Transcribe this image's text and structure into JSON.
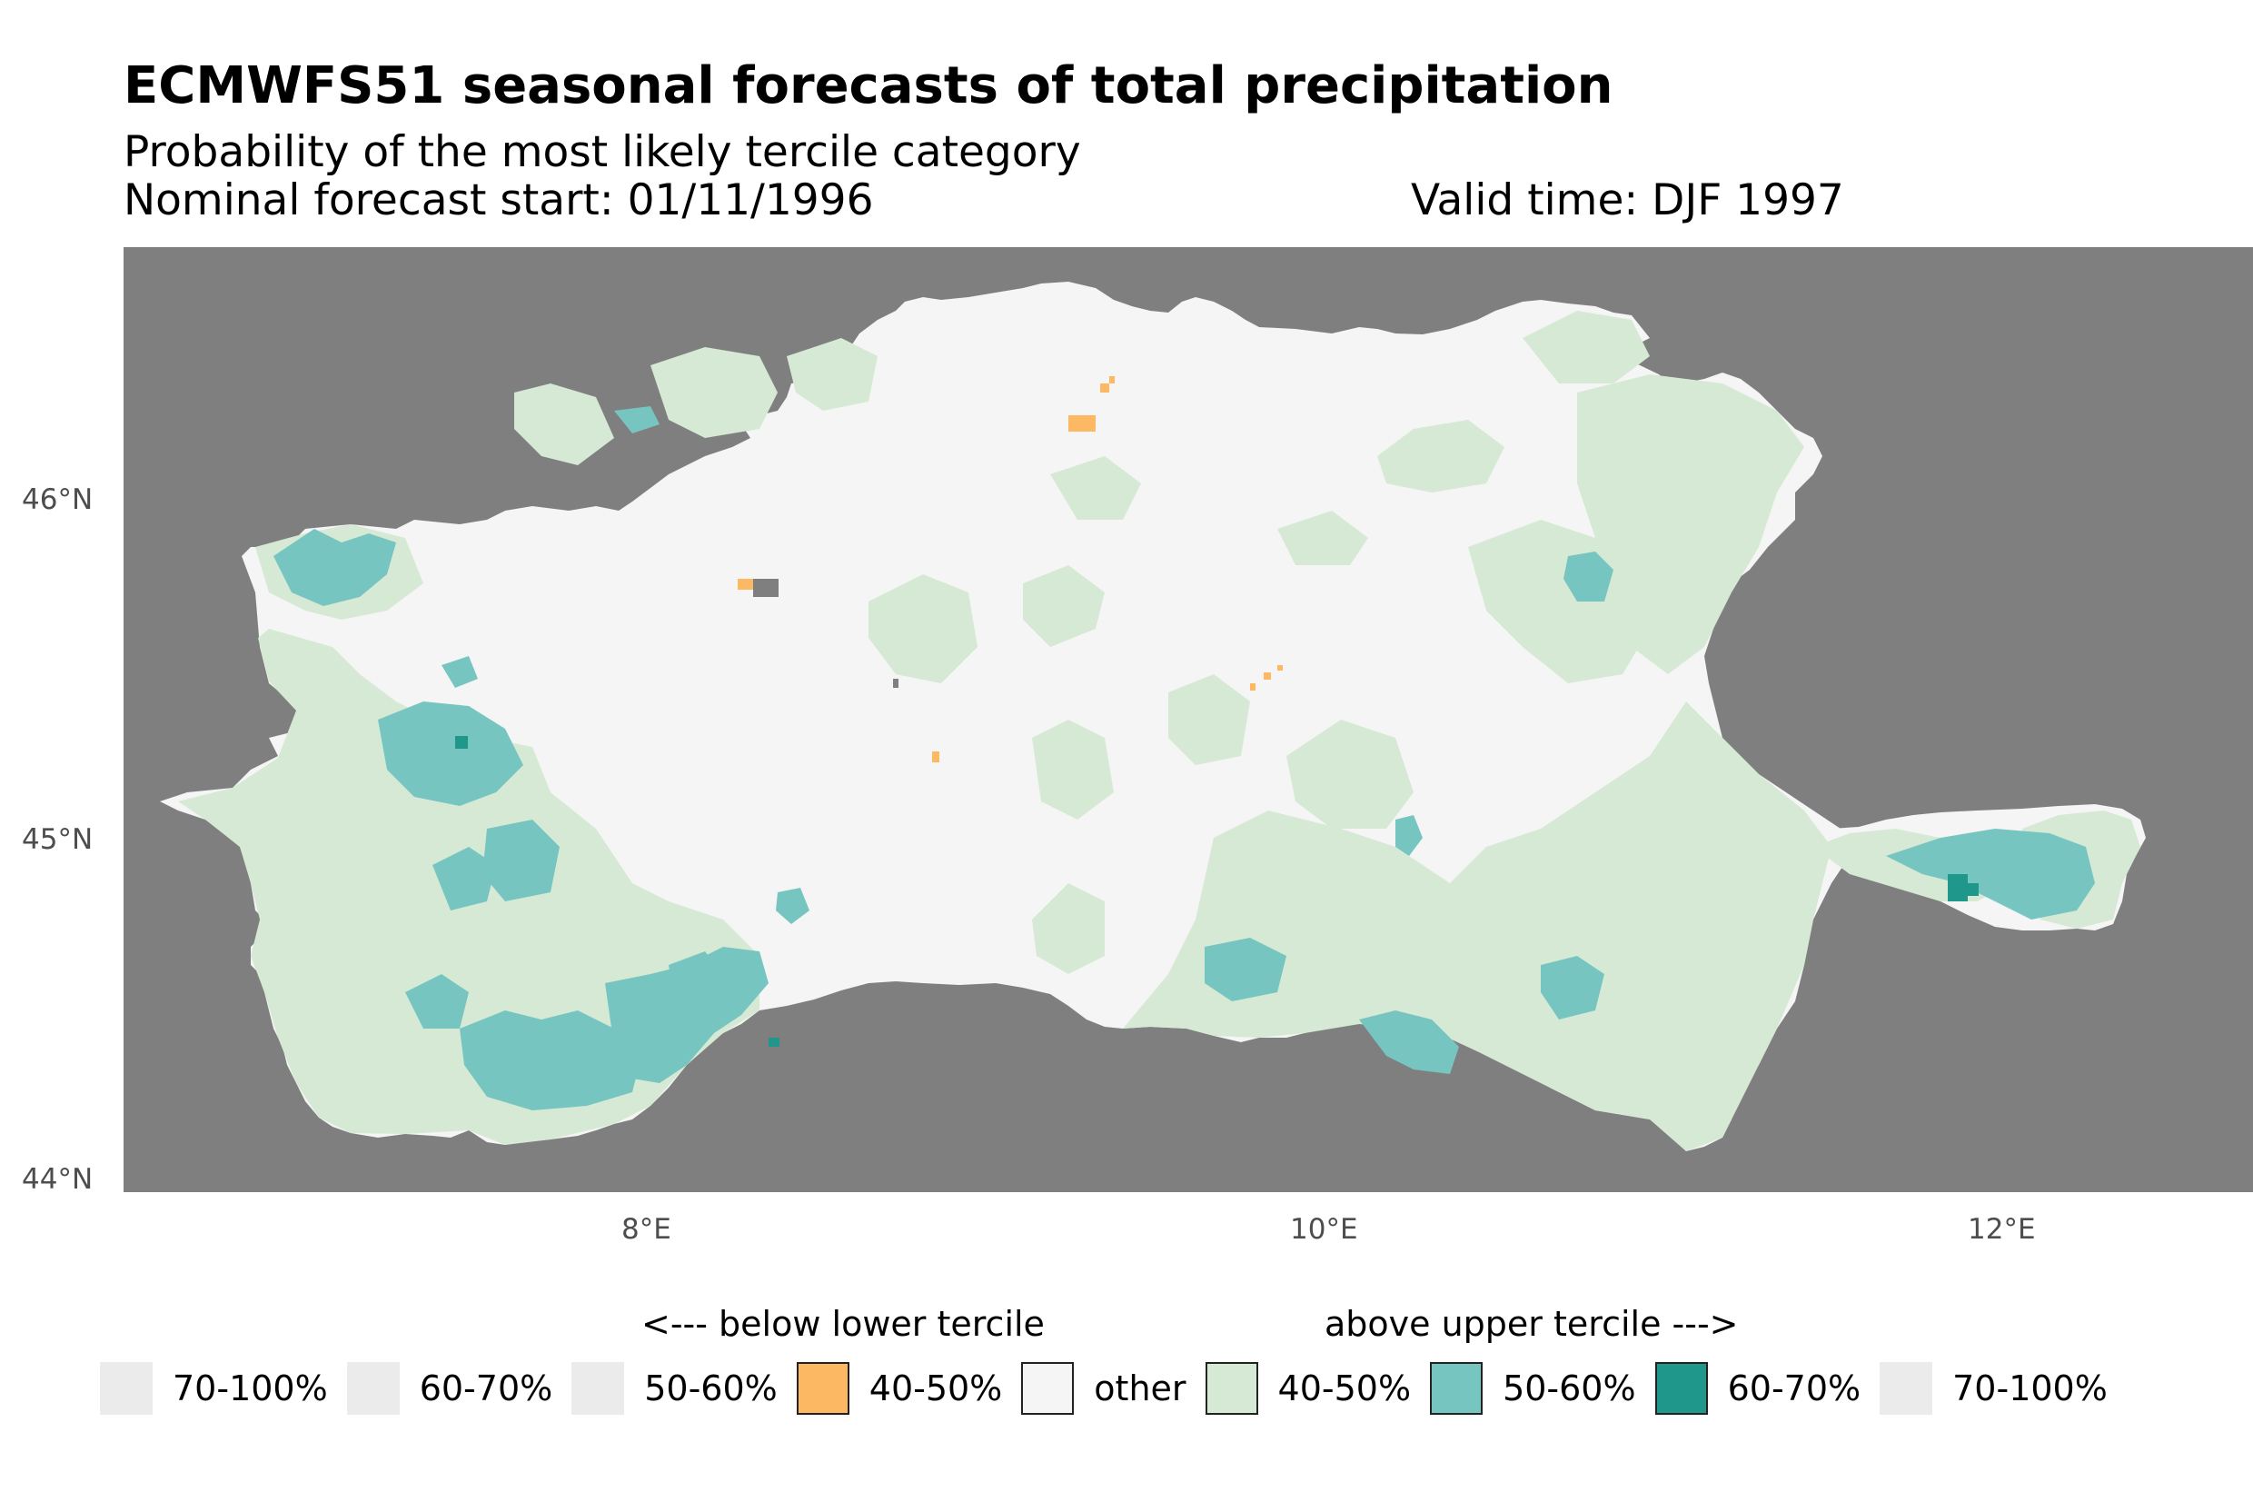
{
  "title": "ECMWFS51 seasonal forecasts of total precipitation",
  "subtitle": "Probability of the most likely tercile category",
  "forecast_start": "Nominal forecast start: 01/11/1996",
  "valid_time": "Valid time: DJF 1997",
  "colors": {
    "panel_background": "#7f7f7f",
    "other": "#f5f5f5",
    "below_40_50": "#fdb863",
    "above_40_50": "#d6e9d5",
    "above_50_60": "#76c5c0",
    "above_60_70": "#1f978b",
    "empty": "#ebebeb"
  },
  "axes": {
    "x_ticks": [
      "8°E",
      "10°E",
      "12°E"
    ],
    "y_ticks": [
      "46°N",
      "45°N",
      "44°N"
    ]
  },
  "legend": {
    "below_title": "<--- below lower tercile",
    "above_title": "above upper tercile --->",
    "items": [
      {
        "label": "70-100%",
        "color": "#ebebeb",
        "bordered": false
      },
      {
        "label": "60-70%",
        "color": "#ebebeb",
        "bordered": false
      },
      {
        "label": "50-60%",
        "color": "#ebebeb",
        "bordered": false
      },
      {
        "label": "40-50%",
        "color": "#fdb863",
        "bordered": true
      },
      {
        "label": "other",
        "color": "#f5f5f5",
        "bordered": true
      },
      {
        "label": "40-50%",
        "color": "#d6e9d5",
        "bordered": true
      },
      {
        "label": "50-60%",
        "color": "#76c5c0",
        "bordered": true
      },
      {
        "label": "60-70%",
        "color": "#1f978b",
        "bordered": true
      },
      {
        "label": "70-100%",
        "color": "#ebebeb",
        "bordered": false
      }
    ]
  }
}
